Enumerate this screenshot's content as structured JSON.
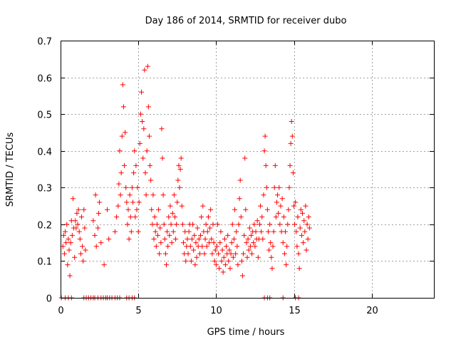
{
  "chart_data": {
    "type": "scatter",
    "title": "Day 186 of 2014, SRMTID for receiver dubo",
    "xlabel": "GPS time / hours",
    "ylabel": "SRMTID / TECUs",
    "xlim": [
      0,
      24
    ],
    "ylim": [
      0,
      0.7
    ],
    "x_ticks": [
      0,
      5,
      10,
      15,
      20
    ],
    "y_ticks": [
      0,
      0.1,
      0.2,
      0.3,
      0.4,
      0.5,
      0.6,
      0.7
    ],
    "x_tick_labels": [
      "0",
      "5",
      "10",
      "15",
      "20"
    ],
    "y_tick_labels": [
      "0",
      "0.1",
      "0.2",
      "0.3",
      "0.4",
      "0.5",
      "0.6",
      "0.7"
    ],
    "grid": true,
    "marker": "plus",
    "series": [
      {
        "name": "SRMTID",
        "color": "#ff0000",
        "points": [
          [
            0.05,
            0
          ],
          [
            0.3,
            0
          ],
          [
            0.5,
            0
          ],
          [
            0.7,
            0
          ],
          [
            1.5,
            0
          ],
          [
            1.65,
            0
          ],
          [
            1.8,
            0
          ],
          [
            1.95,
            0
          ],
          [
            2.1,
            0
          ],
          [
            2.2,
            0
          ],
          [
            2.4,
            0
          ],
          [
            2.6,
            0
          ],
          [
            2.75,
            0
          ],
          [
            2.9,
            0
          ],
          [
            3.0,
            0
          ],
          [
            3.15,
            0
          ],
          [
            3.3,
            0
          ],
          [
            3.5,
            0
          ],
          [
            3.65,
            0
          ],
          [
            3.8,
            0
          ],
          [
            4.25,
            0
          ],
          [
            4.4,
            0
          ],
          [
            4.6,
            0
          ],
          [
            4.75,
            0
          ],
          [
            13.1,
            0
          ],
          [
            13.3,
            0
          ],
          [
            13.45,
            0
          ],
          [
            14.3,
            0
          ],
          [
            15.1,
            0
          ],
          [
            15.3,
            0
          ],
          [
            0.15,
            0.14
          ],
          [
            0.2,
            0.17
          ],
          [
            0.25,
            0.12
          ],
          [
            0.3,
            0.18
          ],
          [
            0.35,
            0.15
          ],
          [
            0.4,
            0.2
          ],
          [
            0.45,
            0.09
          ],
          [
            0.5,
            0.16
          ],
          [
            0.55,
            0.13
          ],
          [
            0.6,
            0.06
          ],
          [
            0.65,
            0.15
          ],
          [
            0.7,
            0.21
          ],
          [
            0.75,
            0.17
          ],
          [
            0.8,
            0.27
          ],
          [
            0.85,
            0.19
          ],
          [
            0.9,
            0.11
          ],
          [
            0.95,
            0.21
          ],
          [
            1.0,
            0.19
          ],
          [
            1.05,
            0.23
          ],
          [
            1.1,
            0.2
          ],
          [
            1.15,
            0.24
          ],
          [
            1.2,
            0.18
          ],
          [
            1.25,
            0.16
          ],
          [
            1.3,
            0.12
          ],
          [
            1.35,
            0.22
          ],
          [
            1.4,
            0.14
          ],
          [
            1.45,
            0.1
          ],
          [
            1.5,
            0.24
          ],
          [
            1.55,
            0.19
          ],
          [
            1.6,
            0.13
          ],
          [
            2.1,
            0.21
          ],
          [
            2.2,
            0.17
          ],
          [
            2.25,
            0.28
          ],
          [
            2.3,
            0.14
          ],
          [
            2.4,
            0.19
          ],
          [
            2.45,
            0.23
          ],
          [
            2.5,
            0.26
          ],
          [
            2.6,
            0.15
          ],
          [
            2.8,
            0.09
          ],
          [
            3.0,
            0.24
          ],
          [
            3.1,
            0.16
          ],
          [
            3.5,
            0.18
          ],
          [
            3.6,
            0.22
          ],
          [
            3.7,
            0.25
          ],
          [
            3.75,
            0.31
          ],
          [
            3.8,
            0.4
          ],
          [
            3.85,
            0.28
          ],
          [
            3.9,
            0.34
          ],
          [
            3.95,
            0.44
          ],
          [
            4.0,
            0.58
          ],
          [
            4.05,
            0.52
          ],
          [
            4.1,
            0.36
          ],
          [
            4.15,
            0.45
          ],
          [
            4.2,
            0.3
          ],
          [
            4.25,
            0.26
          ],
          [
            4.3,
            0.2
          ],
          [
            4.35,
            0.24
          ],
          [
            4.4,
            0.16
          ],
          [
            4.45,
            0.28
          ],
          [
            4.5,
            0.22
          ],
          [
            4.55,
            0.18
          ],
          [
            4.6,
            0.3
          ],
          [
            4.65,
            0.26
          ],
          [
            4.7,
            0.34
          ],
          [
            4.75,
            0.4
          ],
          [
            4.8,
            0.22
          ],
          [
            4.85,
            0.36
          ],
          [
            4.9,
            0.24
          ],
          [
            4.95,
            0.3
          ],
          [
            5.0,
            0.18
          ],
          [
            5.05,
            0.26
          ],
          [
            5.1,
            0.42
          ],
          [
            5.15,
            0.5
          ],
          [
            5.2,
            0.56
          ],
          [
            5.25,
            0.48
          ],
          [
            5.3,
            0.38
          ],
          [
            5.35,
            0.46
          ],
          [
            5.4,
            0.62
          ],
          [
            5.45,
            0.34
          ],
          [
            5.5,
            0.28
          ],
          [
            5.55,
            0.4
          ],
          [
            5.6,
            0.63
          ],
          [
            5.65,
            0.52
          ],
          [
            5.7,
            0.44
          ],
          [
            5.75,
            0.36
          ],
          [
            5.8,
            0.32
          ],
          [
            5.85,
            0.24
          ],
          [
            5.9,
            0.2
          ],
          [
            5.95,
            0.28
          ],
          [
            6.0,
            0.16
          ],
          [
            6.05,
            0.22
          ],
          [
            6.1,
            0.18
          ],
          [
            6.15,
            0.14
          ],
          [
            6.2,
            0.2
          ],
          [
            6.25,
            0.17
          ],
          [
            6.3,
            0.24
          ],
          [
            6.35,
            0.12
          ],
          [
            6.4,
            0.19
          ],
          [
            6.45,
            0.15
          ],
          [
            6.5,
            0.46
          ],
          [
            6.55,
            0.38
          ],
          [
            6.6,
            0.28
          ],
          [
            6.65,
            0.2
          ],
          [
            6.7,
            0.16
          ],
          [
            6.75,
            0.12
          ],
          [
            6.8,
            0.09
          ],
          [
            6.85,
            0.18
          ],
          [
            6.9,
            0.14
          ],
          [
            6.95,
            0.22
          ],
          [
            7.0,
            0.17
          ],
          [
            7.05,
            0.25
          ],
          [
            7.1,
            0.2
          ],
          [
            7.15,
            0.15
          ],
          [
            7.2,
            0.23
          ],
          [
            7.25,
            0.18
          ],
          [
            7.3,
            0.28
          ],
          [
            7.35,
            0.22
          ],
          [
            7.4,
            0.16
          ],
          [
            7.45,
            0.2
          ],
          [
            7.5,
            0.26
          ],
          [
            7.55,
            0.32
          ],
          [
            7.6,
            0.36
          ],
          [
            7.65,
            0.3
          ],
          [
            7.7,
            0.35
          ],
          [
            7.75,
            0.38
          ],
          [
            7.8,
            0.25
          ],
          [
            7.85,
            0.2
          ],
          [
            7.9,
            0.15
          ],
          [
            7.95,
            0.12
          ],
          [
            8.0,
            0.18
          ],
          [
            8.05,
            0.1
          ],
          [
            8.1,
            0.14
          ],
          [
            8.15,
            0.16
          ],
          [
            8.2,
            0.12
          ],
          [
            8.25,
            0.18
          ],
          [
            8.3,
            0.2
          ],
          [
            8.35,
            0.14
          ],
          [
            8.4,
            0.1
          ],
          [
            8.45,
            0.16
          ],
          [
            8.5,
            0.2
          ],
          [
            8.55,
            0.13
          ],
          [
            8.6,
            0.17
          ],
          [
            8.65,
            0.09
          ],
          [
            8.7,
            0.15
          ],
          [
            8.75,
            0.11
          ],
          [
            8.8,
            0.19
          ],
          [
            8.85,
            0.14
          ],
          [
            8.9,
            0.16
          ],
          [
            8.95,
            0.12
          ],
          [
            9.0,
            0.17
          ],
          [
            9.05,
            0.22
          ],
          [
            9.1,
            0.14
          ],
          [
            9.15,
            0.25
          ],
          [
            9.2,
            0.18
          ],
          [
            9.25,
            0.12
          ],
          [
            9.3,
            0.16
          ],
          [
            9.35,
            0.2
          ],
          [
            9.4,
            0.14
          ],
          [
            9.45,
            0.18
          ],
          [
            9.5,
            0.22
          ],
          [
            9.55,
            0.15
          ],
          [
            9.6,
            0.19
          ],
          [
            9.65,
            0.24
          ],
          [
            9.7,
            0.16
          ],
          [
            9.75,
            0.12
          ],
          [
            9.8,
            0.2
          ],
          [
            9.85,
            0.15
          ],
          [
            9.9,
            0.1
          ],
          [
            9.95,
            0.13
          ],
          [
            10.0,
            0.09
          ],
          [
            10.05,
            0.14
          ],
          [
            10.1,
            0.2
          ],
          [
            10.15,
            0.12
          ],
          [
            10.2,
            0.08
          ],
          [
            10.25,
            0.15
          ],
          [
            10.3,
            0.18
          ],
          [
            10.35,
            0.1
          ],
          [
            10.4,
            0.13
          ],
          [
            10.45,
            0.07
          ],
          [
            10.5,
            0.11
          ],
          [
            10.55,
            0.16
          ],
          [
            10.6,
            0.09
          ],
          [
            10.65,
            0.14
          ],
          [
            10.7,
            0.12
          ],
          [
            10.75,
            0.17
          ],
          [
            10.8,
            0.1
          ],
          [
            10.85,
            0.13
          ],
          [
            10.9,
            0.08
          ],
          [
            10.95,
            0.12
          ],
          [
            11.0,
            0.15
          ],
          [
            11.05,
            0.2
          ],
          [
            11.1,
            0.11
          ],
          [
            11.15,
            0.16
          ],
          [
            11.2,
            0.24
          ],
          [
            11.25,
            0.12
          ],
          [
            11.3,
            0.18
          ],
          [
            11.35,
            0.14
          ],
          [
            11.4,
            0.09
          ],
          [
            11.45,
            0.2
          ],
          [
            11.5,
            0.27
          ],
          [
            11.55,
            0.32
          ],
          [
            11.6,
            0.22
          ],
          [
            11.65,
            0.1
          ],
          [
            11.7,
            0.06
          ],
          [
            11.75,
            0.12
          ],
          [
            11.8,
            0.17
          ],
          [
            11.85,
            0.38
          ],
          [
            11.9,
            0.24
          ],
          [
            11.95,
            0.15
          ],
          [
            12.0,
            0.11
          ],
          [
            12.05,
            0.16
          ],
          [
            12.1,
            0.13
          ],
          [
            12.15,
            0.19
          ],
          [
            12.2,
            0.14
          ],
          [
            12.25,
            0.17
          ],
          [
            12.3,
            0.12
          ],
          [
            12.35,
            0.18
          ],
          [
            12.4,
            0.15
          ],
          [
            12.45,
            0.2
          ],
          [
            12.5,
            0.14
          ],
          [
            12.55,
            0.18
          ],
          [
            12.6,
            0.16
          ],
          [
            12.65,
            0.21
          ],
          [
            12.7,
            0.11
          ],
          [
            12.75,
            0.16
          ],
          [
            12.8,
            0.2
          ],
          [
            12.85,
            0.25
          ],
          [
            12.9,
            0.18
          ],
          [
            12.95,
            0.22
          ],
          [
            13.0,
            0.16
          ],
          [
            13.05,
            0.28
          ],
          [
            13.1,
            0.4
          ],
          [
            13.15,
            0.44
          ],
          [
            13.2,
            0.36
          ],
          [
            13.25,
            0.3
          ],
          [
            13.3,
            0.24
          ],
          [
            13.35,
            0.18
          ],
          [
            13.4,
            0.13
          ],
          [
            13.45,
            0.2
          ],
          [
            13.5,
            0.15
          ],
          [
            13.55,
            0.11
          ],
          [
            13.6,
            0.08
          ],
          [
            13.65,
            0.14
          ],
          [
            13.7,
            0.18
          ],
          [
            13.75,
            0.3
          ],
          [
            13.8,
            0.36
          ],
          [
            13.85,
            0.22
          ],
          [
            13.9,
            0.26
          ],
          [
            13.95,
            0.28
          ],
          [
            14.0,
            0.23
          ],
          [
            14.05,
            0.3
          ],
          [
            14.1,
            0.2
          ],
          [
            14.15,
            0.25
          ],
          [
            14.2,
            0.18
          ],
          [
            14.25,
            0.27
          ],
          [
            14.3,
            0.15
          ],
          [
            14.35,
            0.22
          ],
          [
            14.4,
            0.12
          ],
          [
            14.45,
            0.18
          ],
          [
            14.5,
            0.09
          ],
          [
            14.55,
            0.14
          ],
          [
            14.6,
            0.2
          ],
          [
            14.65,
            0.24
          ],
          [
            14.7,
            0.3
          ],
          [
            14.75,
            0.36
          ],
          [
            14.8,
            0.42
          ],
          [
            14.85,
            0.48
          ],
          [
            14.9,
            0.44
          ],
          [
            14.95,
            0.34
          ],
          [
            15.0,
            0.25
          ],
          [
            15.05,
            0.2
          ],
          [
            15.1,
            0.26
          ],
          [
            15.15,
            0.18
          ],
          [
            15.2,
            0.14
          ],
          [
            15.25,
            0.22
          ],
          [
            15.3,
            0.12
          ],
          [
            15.35,
            0.08
          ],
          [
            15.4,
            0.19
          ],
          [
            15.45,
            0.24
          ],
          [
            15.5,
            0.17
          ],
          [
            15.55,
            0.23
          ],
          [
            15.6,
            0.15
          ],
          [
            15.65,
            0.21
          ],
          [
            15.7,
            0.18
          ],
          [
            15.75,
            0.25
          ],
          [
            15.8,
            0.13
          ],
          [
            15.85,
            0.2
          ],
          [
            15.9,
            0.16
          ],
          [
            15.95,
            0.22
          ],
          [
            16.0,
            0.19
          ]
        ]
      }
    ]
  }
}
